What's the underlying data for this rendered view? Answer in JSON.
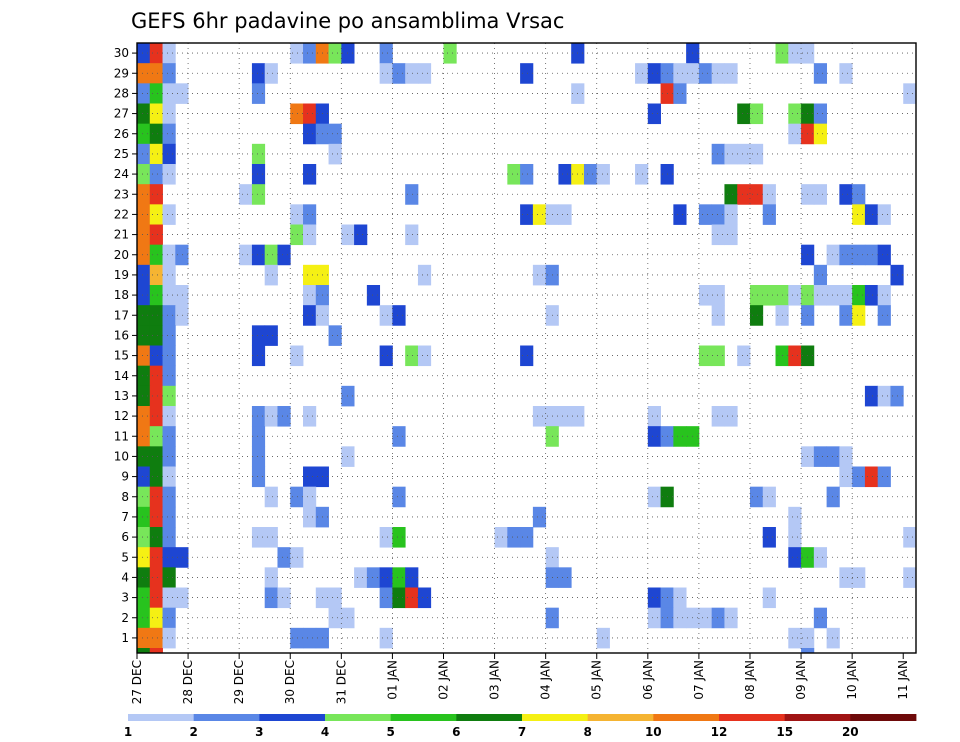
{
  "chart_data": {
    "type": "heatmap",
    "title": "GEFS 6hr padavine po ansamblima Vrsac",
    "x_tick_labels": [
      "27 DEC",
      "28 DEC",
      "29 DEC",
      "30 DEC",
      "31 DEC",
      "01 JAN",
      "02 JAN",
      "03 JAN",
      "04 JAN",
      "05 JAN",
      "06 JAN",
      "07 JAN",
      "08 JAN",
      "09 JAN",
      "10 JAN",
      "11 JAN"
    ],
    "y_tick_labels": [
      "1",
      "2",
      "3",
      "4",
      "5",
      "6",
      "7",
      "8",
      "9",
      "10",
      "11",
      "12",
      "13",
      "14",
      "15",
      "16",
      "17",
      "18",
      "19",
      "20",
      "21",
      "22",
      "23",
      "24",
      "25",
      "26",
      "27",
      "28",
      "29",
      "30"
    ],
    "grid": true,
    "colorbar": {
      "labels": [
        "1",
        "2",
        "3",
        "4",
        "5",
        "6",
        "7",
        "8",
        "10",
        "12",
        "15",
        "20"
      ],
      "colors": [
        "#b4c8f5",
        "#5a87e6",
        "#1e46d2",
        "#78e65a",
        "#28c31e",
        "#0f7d0f",
        "#f5f014",
        "#f5b432",
        "#f07814",
        "#e6321e",
        "#a01414",
        "#6e0a0a"
      ]
    },
    "cells": [
      [
        30,
        0,
        2
      ],
      [
        30,
        1,
        9
      ],
      [
        30,
        2,
        0
      ],
      [
        30,
        12,
        0
      ],
      [
        30,
        13,
        1
      ],
      [
        30,
        14,
        8
      ],
      [
        30,
        15,
        3
      ],
      [
        30,
        16,
        2
      ],
      [
        30,
        19,
        1
      ],
      [
        30,
        24,
        3
      ],
      [
        30,
        34,
        2
      ],
      [
        30,
        43,
        2
      ],
      [
        30,
        50,
        3
      ],
      [
        30,
        51,
        0
      ],
      [
        30,
        52,
        0
      ],
      [
        29,
        0,
        8
      ],
      [
        29,
        1,
        8
      ],
      [
        29,
        2,
        1
      ],
      [
        29,
        9,
        2
      ],
      [
        29,
        10,
        0
      ],
      [
        29,
        19,
        0
      ],
      [
        29,
        20,
        1
      ],
      [
        29,
        21,
        0
      ],
      [
        29,
        22,
        0
      ],
      [
        29,
        30,
        2
      ],
      [
        29,
        39,
        0
      ],
      [
        29,
        40,
        2
      ],
      [
        29,
        41,
        1
      ],
      [
        29,
        42,
        0
      ],
      [
        29,
        43,
        0
      ],
      [
        29,
        44,
        1
      ],
      [
        29,
        45,
        0
      ],
      [
        29,
        46,
        0
      ],
      [
        29,
        53,
        1
      ],
      [
        29,
        55,
        0
      ],
      [
        28,
        0,
        1
      ],
      [
        28,
        1,
        4
      ],
      [
        28,
        2,
        0
      ],
      [
        28,
        3,
        0
      ],
      [
        28,
        9,
        1
      ],
      [
        28,
        34,
        0
      ],
      [
        28,
        41,
        9
      ],
      [
        28,
        42,
        1
      ],
      [
        28,
        60,
        0
      ],
      [
        27,
        0,
        5
      ],
      [
        27,
        1,
        6
      ],
      [
        27,
        2,
        0
      ],
      [
        27,
        12,
        8
      ],
      [
        27,
        13,
        9
      ],
      [
        27,
        14,
        2
      ],
      [
        27,
        40,
        2
      ],
      [
        27,
        47,
        5
      ],
      [
        27,
        48,
        3
      ],
      [
        27,
        51,
        3
      ],
      [
        27,
        52,
        5
      ],
      [
        27,
        53,
        1
      ],
      [
        26,
        0,
        4
      ],
      [
        26,
        1,
        5
      ],
      [
        26,
        2,
        1
      ],
      [
        26,
        13,
        2
      ],
      [
        26,
        14,
        1
      ],
      [
        26,
        15,
        1
      ],
      [
        26,
        51,
        0
      ],
      [
        26,
        52,
        9
      ],
      [
        26,
        53,
        6
      ],
      [
        25,
        0,
        1
      ],
      [
        25,
        1,
        6
      ],
      [
        25,
        2,
        2
      ],
      [
        25,
        9,
        3
      ],
      [
        25,
        15,
        0
      ],
      [
        25,
        45,
        1
      ],
      [
        25,
        46,
        0
      ],
      [
        25,
        47,
        0
      ],
      [
        25,
        48,
        0
      ],
      [
        24,
        0,
        3
      ],
      [
        24,
        1,
        1
      ],
      [
        24,
        2,
        0
      ],
      [
        24,
        9,
        2
      ],
      [
        24,
        13,
        2
      ],
      [
        24,
        29,
        3
      ],
      [
        24,
        30,
        1
      ],
      [
        24,
        33,
        2
      ],
      [
        24,
        34,
        6
      ],
      [
        24,
        35,
        1
      ],
      [
        24,
        36,
        0
      ],
      [
        24,
        39,
        0
      ],
      [
        24,
        41,
        2
      ],
      [
        23,
        0,
        8
      ],
      [
        23,
        1,
        9
      ],
      [
        23,
        8,
        0
      ],
      [
        23,
        9,
        3
      ],
      [
        23,
        21,
        1
      ],
      [
        23,
        46,
        5
      ],
      [
        23,
        47,
        9
      ],
      [
        23,
        48,
        9
      ],
      [
        23,
        49,
        0
      ],
      [
        23,
        52,
        0
      ],
      [
        23,
        53,
        0
      ],
      [
        23,
        55,
        2
      ],
      [
        23,
        56,
        1
      ],
      [
        22,
        0,
        8
      ],
      [
        22,
        1,
        6
      ],
      [
        22,
        2,
        0
      ],
      [
        22,
        12,
        0
      ],
      [
        22,
        13,
        1
      ],
      [
        22,
        30,
        2
      ],
      [
        22,
        31,
        6
      ],
      [
        22,
        32,
        0
      ],
      [
        22,
        33,
        0
      ],
      [
        22,
        42,
        2
      ],
      [
        22,
        44,
        1
      ],
      [
        22,
        45,
        1
      ],
      [
        22,
        46,
        0
      ],
      [
        22,
        49,
        1
      ],
      [
        22,
        56,
        6
      ],
      [
        22,
        57,
        2
      ],
      [
        22,
        58,
        0
      ],
      [
        21,
        0,
        8
      ],
      [
        21,
        1,
        9
      ],
      [
        21,
        12,
        3
      ],
      [
        21,
        13,
        0
      ],
      [
        21,
        16,
        0
      ],
      [
        21,
        17,
        2
      ],
      [
        21,
        21,
        0
      ],
      [
        21,
        45,
        0
      ],
      [
        21,
        46,
        0
      ],
      [
        20,
        0,
        8
      ],
      [
        20,
        1,
        4
      ],
      [
        20,
        2,
        0
      ],
      [
        20,
        3,
        1
      ],
      [
        20,
        8,
        0
      ],
      [
        20,
        9,
        2
      ],
      [
        20,
        10,
        3
      ],
      [
        20,
        11,
        2
      ],
      [
        20,
        52,
        2
      ],
      [
        20,
        54,
        0
      ],
      [
        20,
        55,
        1
      ],
      [
        20,
        56,
        1
      ],
      [
        20,
        57,
        1
      ],
      [
        20,
        58,
        2
      ],
      [
        19,
        0,
        2
      ],
      [
        19,
        1,
        7
      ],
      [
        19,
        2,
        0
      ],
      [
        19,
        10,
        0
      ],
      [
        19,
        13,
        6
      ],
      [
        19,
        14,
        6
      ],
      [
        19,
        22,
        0
      ],
      [
        19,
        31,
        0
      ],
      [
        19,
        32,
        1
      ],
      [
        19,
        53,
        1
      ],
      [
        19,
        59,
        2
      ],
      [
        18,
        0,
        2
      ],
      [
        18,
        1,
        4
      ],
      [
        18,
        2,
        0
      ],
      [
        18,
        3,
        0
      ],
      [
        18,
        13,
        0
      ],
      [
        18,
        14,
        1
      ],
      [
        18,
        18,
        2
      ],
      [
        18,
        44,
        0
      ],
      [
        18,
        45,
        0
      ],
      [
        18,
        48,
        3
      ],
      [
        18,
        49,
        3
      ],
      [
        18,
        50,
        3
      ],
      [
        18,
        51,
        0
      ],
      [
        18,
        52,
        3
      ],
      [
        18,
        53,
        0
      ],
      [
        18,
        54,
        0
      ],
      [
        18,
        55,
        0
      ],
      [
        18,
        56,
        4
      ],
      [
        18,
        57,
        2
      ],
      [
        18,
        58,
        0
      ],
      [
        17,
        0,
        5
      ],
      [
        17,
        1,
        5
      ],
      [
        17,
        2,
        1
      ],
      [
        17,
        3,
        0
      ],
      [
        17,
        13,
        2
      ],
      [
        17,
        14,
        0
      ],
      [
        17,
        19,
        0
      ],
      [
        17,
        20,
        2
      ],
      [
        17,
        32,
        0
      ],
      [
        17,
        45,
        0
      ],
      [
        17,
        48,
        5
      ],
      [
        17,
        50,
        0
      ],
      [
        17,
        52,
        1
      ],
      [
        17,
        55,
        1
      ],
      [
        17,
        56,
        6
      ],
      [
        17,
        58,
        1
      ],
      [
        16,
        0,
        5
      ],
      [
        16,
        1,
        5
      ],
      [
        16,
        2,
        1
      ],
      [
        16,
        9,
        2
      ],
      [
        16,
        10,
        2
      ],
      [
        16,
        15,
        1
      ],
      [
        15,
        0,
        8
      ],
      [
        15,
        1,
        2
      ],
      [
        15,
        2,
        1
      ],
      [
        15,
        9,
        2
      ],
      [
        15,
        12,
        0
      ],
      [
        15,
        19,
        2
      ],
      [
        15,
        21,
        3
      ],
      [
        15,
        22,
        0
      ],
      [
        15,
        30,
        2
      ],
      [
        15,
        44,
        3
      ],
      [
        15,
        45,
        3
      ],
      [
        15,
        47,
        0
      ],
      [
        15,
        50,
        4
      ],
      [
        15,
        51,
        9
      ],
      [
        15,
        52,
        5
      ],
      [
        14,
        0,
        5
      ],
      [
        14,
        1,
        9
      ],
      [
        14,
        2,
        1
      ],
      [
        13,
        0,
        5
      ],
      [
        13,
        1,
        9
      ],
      [
        13,
        2,
        3
      ],
      [
        13,
        16,
        1
      ],
      [
        13,
        57,
        2
      ],
      [
        13,
        58,
        0
      ],
      [
        13,
        59,
        1
      ],
      [
        12,
        0,
        8
      ],
      [
        12,
        1,
        9
      ],
      [
        12,
        2,
        0
      ],
      [
        12,
        9,
        1
      ],
      [
        12,
        10,
        0
      ],
      [
        12,
        11,
        1
      ],
      [
        12,
        13,
        0
      ],
      [
        12,
        31,
        0
      ],
      [
        12,
        32,
        0
      ],
      [
        12,
        33,
        0
      ],
      [
        12,
        34,
        0
      ],
      [
        12,
        40,
        0
      ],
      [
        12,
        45,
        0
      ],
      [
        12,
        46,
        0
      ],
      [
        11,
        0,
        8
      ],
      [
        11,
        1,
        3
      ],
      [
        11,
        2,
        1
      ],
      [
        11,
        9,
        1
      ],
      [
        11,
        20,
        1
      ],
      [
        11,
        32,
        3
      ],
      [
        11,
        40,
        2
      ],
      [
        11,
        41,
        1
      ],
      [
        11,
        42,
        4
      ],
      [
        11,
        43,
        4
      ],
      [
        10,
        0,
        5
      ],
      [
        10,
        1,
        5
      ],
      [
        10,
        2,
        1
      ],
      [
        10,
        9,
        1
      ],
      [
        10,
        16,
        0
      ],
      [
        10,
        52,
        0
      ],
      [
        10,
        53,
        1
      ],
      [
        10,
        54,
        1
      ],
      [
        10,
        55,
        0
      ],
      [
        9,
        0,
        2
      ],
      [
        9,
        1,
        5
      ],
      [
        9,
        2,
        0
      ],
      [
        9,
        9,
        1
      ],
      [
        9,
        13,
        2
      ],
      [
        9,
        14,
        2
      ],
      [
        9,
        55,
        0
      ],
      [
        9,
        56,
        1
      ],
      [
        9,
        57,
        9
      ],
      [
        9,
        58,
        1
      ],
      [
        8,
        0,
        3
      ],
      [
        8,
        1,
        9
      ],
      [
        8,
        2,
        1
      ],
      [
        8,
        10,
        0
      ],
      [
        8,
        12,
        1
      ],
      [
        8,
        13,
        0
      ],
      [
        8,
        20,
        1
      ],
      [
        8,
        40,
        0
      ],
      [
        8,
        41,
        5
      ],
      [
        8,
        48,
        1
      ],
      [
        8,
        49,
        0
      ],
      [
        8,
        54,
        1
      ],
      [
        7,
        0,
        4
      ],
      [
        7,
        1,
        9
      ],
      [
        7,
        2,
        1
      ],
      [
        7,
        13,
        0
      ],
      [
        7,
        14,
        1
      ],
      [
        7,
        31,
        1
      ],
      [
        7,
        51,
        0
      ],
      [
        6,
        0,
        3
      ],
      [
        6,
        1,
        5
      ],
      [
        6,
        2,
        1
      ],
      [
        6,
        9,
        0
      ],
      [
        6,
        10,
        0
      ],
      [
        6,
        19,
        0
      ],
      [
        6,
        20,
        4
      ],
      [
        6,
        28,
        0
      ],
      [
        6,
        29,
        1
      ],
      [
        6,
        30,
        1
      ],
      [
        6,
        49,
        2
      ],
      [
        6,
        51,
        0
      ],
      [
        6,
        60,
        0
      ],
      [
        5,
        0,
        6
      ],
      [
        5,
        1,
        9
      ],
      [
        5,
        2,
        2
      ],
      [
        5,
        3,
        2
      ],
      [
        5,
        11,
        1
      ],
      [
        5,
        12,
        0
      ],
      [
        5,
        32,
        0
      ],
      [
        5,
        51,
        2
      ],
      [
        5,
        52,
        4
      ],
      [
        5,
        53,
        0
      ],
      [
        4,
        0,
        5
      ],
      [
        4,
        1,
        9
      ],
      [
        4,
        2,
        5
      ],
      [
        4,
        10,
        0
      ],
      [
        4,
        17,
        0
      ],
      [
        4,
        18,
        1
      ],
      [
        4,
        19,
        2
      ],
      [
        4,
        20,
        4
      ],
      [
        4,
        21,
        2
      ],
      [
        4,
        32,
        1
      ],
      [
        4,
        33,
        1
      ],
      [
        4,
        55,
        0
      ],
      [
        4,
        56,
        0
      ],
      [
        4,
        60,
        0
      ],
      [
        3,
        0,
        4
      ],
      [
        3,
        1,
        9
      ],
      [
        3,
        2,
        0
      ],
      [
        3,
        3,
        0
      ],
      [
        3,
        10,
        1
      ],
      [
        3,
        11,
        0
      ],
      [
        3,
        14,
        0
      ],
      [
        3,
        15,
        0
      ],
      [
        3,
        19,
        1
      ],
      [
        3,
        20,
        5
      ],
      [
        3,
        21,
        9
      ],
      [
        3,
        22,
        2
      ],
      [
        3,
        40,
        2
      ],
      [
        3,
        41,
        1
      ],
      [
        3,
        42,
        0
      ],
      [
        3,
        49,
        0
      ],
      [
        2,
        0,
        4
      ],
      [
        2,
        1,
        6
      ],
      [
        2,
        2,
        1
      ],
      [
        2,
        15,
        0
      ],
      [
        2,
        16,
        0
      ],
      [
        2,
        32,
        1
      ],
      [
        2,
        40,
        0
      ],
      [
        2,
        41,
        1
      ],
      [
        2,
        42,
        0
      ],
      [
        2,
        43,
        0
      ],
      [
        2,
        44,
        0
      ],
      [
        2,
        45,
        1
      ],
      [
        2,
        46,
        0
      ],
      [
        2,
        53,
        1
      ],
      [
        1,
        0,
        8
      ],
      [
        1,
        1,
        8
      ],
      [
        1,
        2,
        0
      ],
      [
        1,
        12,
        1
      ],
      [
        1,
        13,
        1
      ],
      [
        1,
        14,
        1
      ],
      [
        1,
        19,
        0
      ],
      [
        1,
        36,
        0
      ],
      [
        1,
        51,
        0
      ],
      [
        1,
        52,
        0
      ],
      [
        1,
        54,
        0
      ],
      [
        0,
        0,
        5
      ],
      [
        0,
        1,
        9
      ],
      [
        0,
        52,
        1
      ]
    ]
  }
}
